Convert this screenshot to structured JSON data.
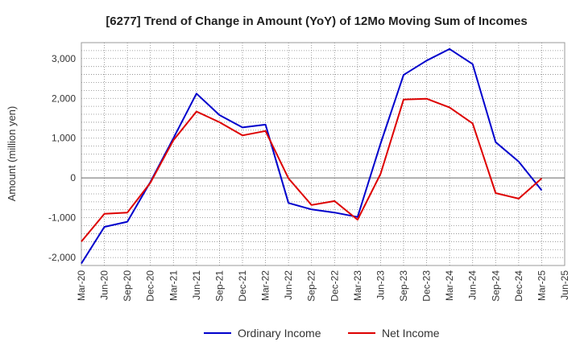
{
  "chart_data": {
    "type": "line",
    "title": "[6277]  Trend of Change in Amount (YoY) of 12Mo Moving Sum of Incomes",
    "xlabel": "",
    "ylabel": "Amount (million yen)",
    "ylim": [
      -2200,
      3400
    ],
    "yticks": [
      -2000,
      -1000,
      0,
      1000,
      2000,
      3000
    ],
    "ytick_labels": [
      "-2,000",
      "-1,000",
      "0",
      "1,000",
      "2,000",
      "3,000"
    ],
    "grid": true,
    "legend_position": "bottom",
    "categories": [
      "Mar-20",
      "Jun-20",
      "Sep-20",
      "Dec-20",
      "Mar-21",
      "Jun-21",
      "Sep-21",
      "Dec-21",
      "Mar-22",
      "Jun-22",
      "Sep-22",
      "Dec-22",
      "Mar-23",
      "Jun-23",
      "Sep-23",
      "Dec-23",
      "Mar-24",
      "Jun-24",
      "Sep-24",
      "Dec-24",
      "Mar-25",
      "Jun-25"
    ],
    "series": [
      {
        "name": "Ordinary Income",
        "color": "#0000cc",
        "values": [
          -2150,
          -1230,
          -1100,
          -100,
          1000,
          2120,
          1580,
          1270,
          1340,
          -630,
          -790,
          -870,
          -980,
          860,
          2590,
          2950,
          3240,
          2860,
          900,
          410,
          -310,
          null
        ]
      },
      {
        "name": "Net Income",
        "color": "#dd0000",
        "values": [
          -1600,
          -900,
          -870,
          -120,
          950,
          1670,
          1400,
          1070,
          1180,
          -10,
          -680,
          -580,
          -1050,
          100,
          1970,
          1990,
          1770,
          1370,
          -380,
          -520,
          -10,
          null
        ]
      }
    ]
  }
}
